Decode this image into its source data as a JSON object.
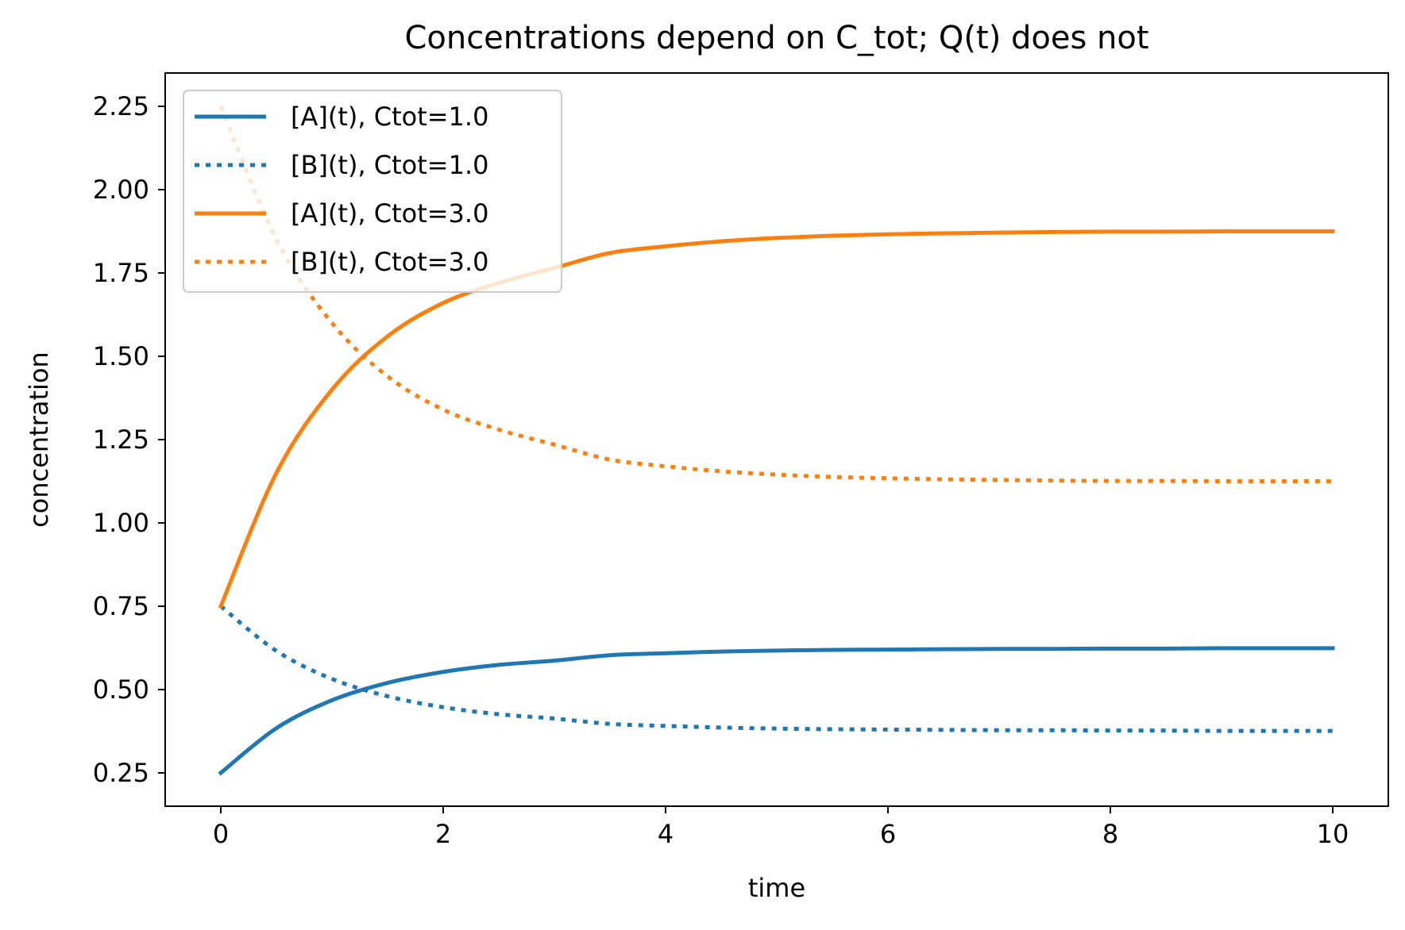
{
  "chart_data": {
    "type": "line",
    "title": "Concentrations depend on C_tot; Q(t) does not",
    "xlabel": "time",
    "ylabel": "concentration",
    "xlim": [
      -0.5,
      10.5
    ],
    "ylim": [
      0.15,
      2.35
    ],
    "xticks": [
      0,
      2,
      4,
      6,
      8,
      10
    ],
    "xtick_labels": [
      "0",
      "2",
      "4",
      "6",
      "8",
      "10"
    ],
    "yticks": [
      0.25,
      0.5,
      0.75,
      1.0,
      1.25,
      1.5,
      1.75,
      2.0,
      2.25
    ],
    "ytick_labels": [
      "0.25",
      "0.50",
      "0.75",
      "1.00",
      "1.25",
      "1.50",
      "1.75",
      "2.00",
      "2.25"
    ],
    "grid": false,
    "legend_position": "upper-left",
    "x": [
      0,
      0.5,
      1,
      1.5,
      2,
      2.5,
      3,
      3.5,
      4,
      4.5,
      5,
      5.5,
      6,
      6.5,
      7,
      7.5,
      8,
      8.5,
      9,
      9.5,
      10
    ],
    "series": [
      {
        "name": "[A](t), Ctot=1.0",
        "color": "#1f77b4",
        "style": "solid",
        "values": [
          0.25,
          0.384,
          0.468,
          0.52,
          0.553,
          0.574,
          0.587,
          0.603,
          0.609,
          0.614,
          0.617,
          0.619,
          0.62,
          0.621,
          0.622,
          0.622,
          0.623,
          0.623,
          0.624,
          0.624,
          0.624
        ]
      },
      {
        "name": "[B](t), Ctot=1.0",
        "color": "#1f77b4",
        "style": "dotted",
        "values": [
          0.75,
          0.616,
          0.532,
          0.48,
          0.447,
          0.426,
          0.413,
          0.397,
          0.391,
          0.386,
          0.383,
          0.381,
          0.38,
          0.379,
          0.378,
          0.378,
          0.377,
          0.377,
          0.376,
          0.376,
          0.376
        ]
      },
      {
        "name": "[A](t), Ctot=3.0",
        "color": "#ff7f0e",
        "style": "solid",
        "values": [
          0.75,
          1.15,
          1.4,
          1.56,
          1.66,
          1.72,
          1.765,
          1.81,
          1.83,
          1.845,
          1.855,
          1.862,
          1.866,
          1.869,
          1.871,
          1.873,
          1.874,
          1.874,
          1.875,
          1.875,
          1.875
        ]
      },
      {
        "name": "[B](t), Ctot=3.0",
        "color": "#ff7f0e",
        "style": "dotted",
        "values": [
          2.25,
          1.85,
          1.6,
          1.44,
          1.34,
          1.28,
          1.235,
          1.19,
          1.17,
          1.155,
          1.145,
          1.138,
          1.134,
          1.131,
          1.129,
          1.127,
          1.126,
          1.126,
          1.125,
          1.125,
          1.125
        ]
      }
    ]
  }
}
